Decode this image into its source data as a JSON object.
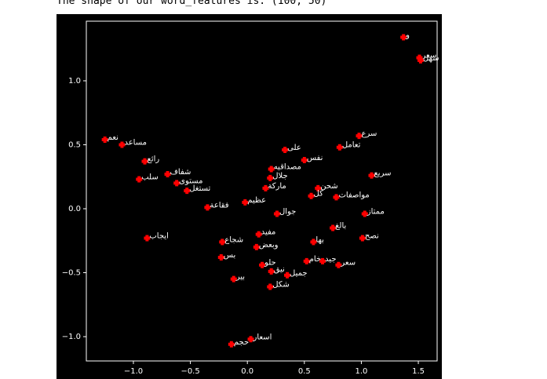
{
  "output_text": "The shape of our word_features is: (100, 50)",
  "chart_data": {
    "type": "scatter",
    "x": [
      1.37,
      1.51,
      1.52,
      0.98,
      0.81,
      0.33,
      0.5,
      0.21,
      0.2,
      1.09,
      0.62,
      0.78,
      1.03,
      1.01,
      0.26,
      0.1,
      0.58,
      0.52,
      0.66,
      0.8,
      0.13,
      0.21,
      0.35,
      -0.23,
      -0.12,
      0.2,
      -0.88,
      -0.95,
      -1.25,
      -1.1,
      -0.7,
      -0.53,
      0.03,
      -0.14,
      -0.02,
      -0.35,
      0.16,
      0.75,
      0.56,
      -0.22,
      0.08,
      -0.9,
      -0.62
    ],
    "y": [
      1.34,
      1.18,
      1.16,
      0.57,
      0.48,
      0.46,
      0.38,
      0.31,
      0.24,
      0.26,
      0.16,
      0.09,
      -0.04,
      -0.23,
      -0.04,
      -0.2,
      -0.26,
      -0.41,
      -0.41,
      -0.44,
      -0.44,
      -0.49,
      -0.52,
      -0.38,
      -0.55,
      -0.61,
      -0.23,
      0.23,
      0.54,
      0.5,
      0.27,
      0.14,
      -1.02,
      -1.06,
      0.05,
      0.01,
      0.16,
      -0.15,
      0.1,
      -0.26,
      -0.3,
      0.37,
      0.2
    ],
    "labels": [
      "و",
      "سعر",
      "سهل",
      "سرع",
      "تعامل",
      "على",
      "نفس",
      "مصداقيه",
      "جلال",
      "سريع",
      "شحن",
      "مواصفات",
      "ممتاز",
      "نصح",
      "جوال",
      "مفيد",
      "بها",
      "خام",
      "جيد",
      "سعر",
      "حلو",
      "نيق",
      "جميل",
      "بس",
      "بير",
      "شكل",
      "ايجاب",
      "سلب",
      "نعم",
      "مساعد",
      "شفاف",
      "تستغل",
      "اسعار",
      "حجم",
      "عظيم",
      "فقاعة",
      "ماركة",
      "بالغ",
      "كل",
      "شجاع",
      "وبعض",
      "رائع",
      "مستوى"
    ],
    "color": "#ff0000",
    "xlim": [
      -1.413,
      1.665
    ],
    "ylim": [
      -1.19,
      1.466
    ],
    "xticks": [
      {
        "value": -1.0,
        "label": "−1.0"
      },
      {
        "value": -0.5,
        "label": "−0.5"
      },
      {
        "value": 0.0,
        "label": "0.0"
      },
      {
        "value": 0.5,
        "label": "0.5"
      },
      {
        "value": 1.0,
        "label": "1.0"
      },
      {
        "value": 1.5,
        "label": "1.5"
      }
    ],
    "yticks": [
      {
        "value": -1.0,
        "label": "−1.0"
      },
      {
        "value": -0.5,
        "label": "−0.5"
      },
      {
        "value": 0.0,
        "label": "0.0"
      },
      {
        "value": 0.5,
        "label": "0.5"
      },
      {
        "value": 1.0,
        "label": "1.0"
      }
    ]
  }
}
